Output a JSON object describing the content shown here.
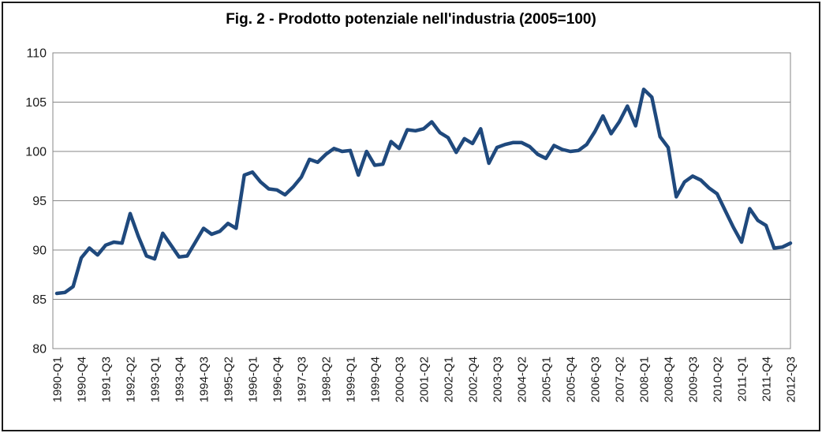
{
  "figure": {
    "title": "Fig. 2 - Prodotto potenziale nell'industria (2005=100)"
  },
  "chart_data": {
    "type": "line",
    "title": "Fig. 2 - Prodotto potenziale nell'industria (2005=100)",
    "x_start_quarter": "1990-Q1",
    "x_end_quarter": "2012-Q3",
    "x_tick_step_quarters": 3,
    "x_tick_labels": [
      "1990-Q1",
      "1990-Q4",
      "1991-Q3",
      "1992-Q2",
      "1993-Q1",
      "1993-Q4",
      "1994-Q3",
      "1995-Q2",
      "1996-Q1",
      "1996-Q4",
      "1997-Q3",
      "1998-Q2",
      "1999-Q1",
      "1999-Q4",
      "2000-Q3",
      "2001-Q2",
      "2002-Q1",
      "2002-Q4",
      "2003-Q3",
      "2004-Q2",
      "2005-Q1",
      "2005-Q4",
      "2006-Q3",
      "2007-Q2",
      "2008-Q1",
      "2008-Q4",
      "2009-Q3",
      "2010-Q2",
      "2011-Q1",
      "2011-Q4",
      "2012-Q3"
    ],
    "y_ticks": [
      80,
      85,
      90,
      95,
      100,
      105,
      110
    ],
    "ylim": [
      80,
      110
    ],
    "grid": "horizontal",
    "legend": "none",
    "line_color": "#1F497D",
    "line_width": 4.5,
    "axis_color": "#878787",
    "values": [
      85.6,
      85.7,
      86.3,
      89.2,
      90.2,
      89.5,
      90.5,
      90.8,
      90.7,
      93.7,
      91.4,
      89.4,
      89.1,
      91.7,
      90.5,
      89.3,
      89.4,
      90.8,
      92.2,
      91.6,
      91.9,
      92.7,
      92.2,
      97.6,
      97.9,
      96.9,
      96.2,
      96.1,
      95.6,
      96.4,
      97.4,
      99.2,
      98.9,
      99.7,
      100.3,
      100.0,
      100.1,
      97.6,
      100.0,
      98.6,
      98.7,
      101.0,
      100.3,
      102.2,
      102.1,
      102.3,
      103.0,
      101.9,
      101.4,
      99.9,
      101.3,
      100.8,
      102.3,
      98.8,
      100.4,
      100.7,
      100.9,
      100.9,
      100.5,
      99.7,
      99.3,
      100.6,
      100.2,
      100.0,
      100.1,
      100.7,
      102.0,
      103.6,
      101.8,
      103.0,
      104.6,
      102.6,
      106.3,
      105.5,
      101.5,
      100.4,
      95.4,
      96.9,
      97.5,
      97.1,
      96.3,
      95.7,
      94.0,
      92.3,
      90.8,
      94.2,
      93.0,
      92.5,
      90.2,
      90.3,
      90.7
    ]
  }
}
